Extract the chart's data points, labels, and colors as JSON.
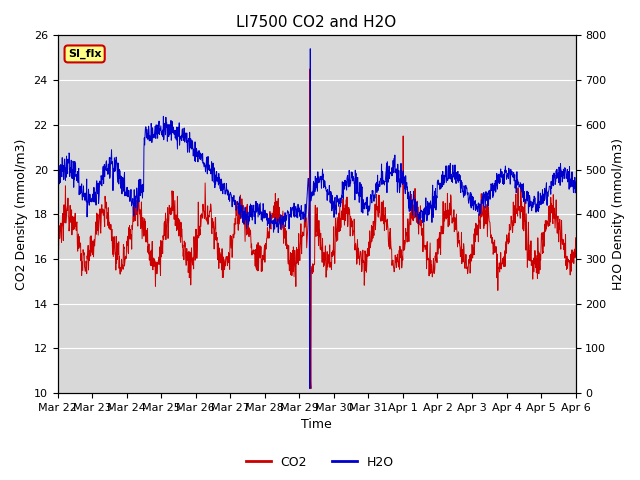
{
  "title": "LI7500 CO2 and H2O",
  "xlabel": "Time",
  "ylabel_left": "CO2 Density (mmol/m3)",
  "ylabel_right": "H2O Density (mmol/m3)",
  "ylim_left": [
    10,
    26
  ],
  "ylim_right": [
    0,
    800
  ],
  "yticks_left": [
    10,
    12,
    14,
    16,
    18,
    20,
    22,
    24,
    26
  ],
  "yticks_right": [
    0,
    100,
    200,
    300,
    400,
    500,
    600,
    700,
    800
  ],
  "xtick_labels": [
    "Mar 22",
    "Mar 23",
    "Mar 24",
    "Mar 25",
    "Mar 26",
    "Mar 27",
    "Mar 28",
    "Mar 29",
    "Mar 30",
    "Mar 31",
    "Apr 1",
    "Apr 2",
    "Apr 3",
    "Apr 4",
    "Apr 5",
    "Apr 6"
  ],
  "annotation_text": "SI_flx",
  "co2_color": "#cc0000",
  "h2o_color": "#0000cc",
  "plot_bg_color": "#d8d8d8",
  "grid_color": "#ffffff",
  "title_fontsize": 11,
  "axis_fontsize": 9,
  "tick_fontsize": 8
}
